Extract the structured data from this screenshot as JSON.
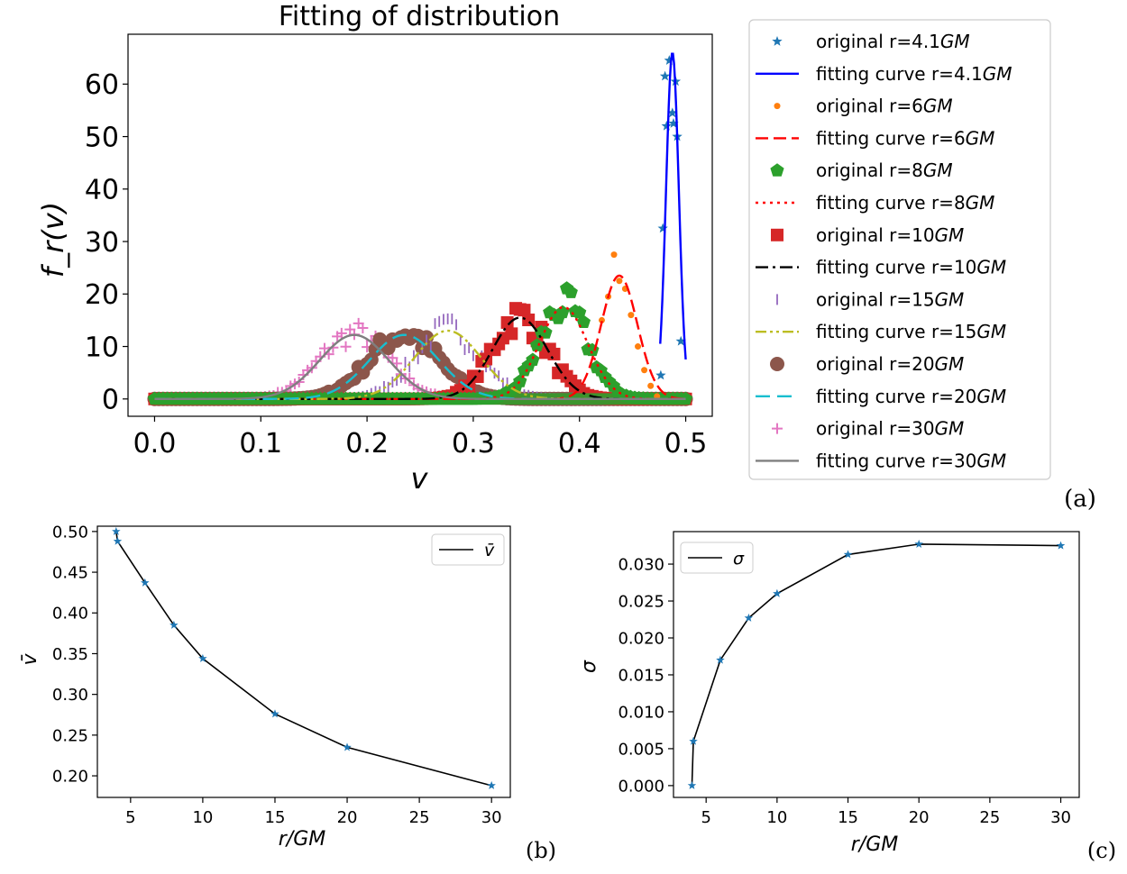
{
  "colors": {
    "C0": "#1f77b4",
    "blue": "#0000ff",
    "C1": "#ff7f0e",
    "red": "#ff0000",
    "C2": "#2ca02c",
    "C3": "#d62728",
    "C4": "#9467bd",
    "olive": "#bcbd22",
    "C5": "#8c564b",
    "cyan": "#17becf",
    "pink": "#e377c2",
    "gray": "#7f7f7f",
    "black": "#000000"
  },
  "chart_data": [
    {
      "type": "line",
      "panel_label": "(a)",
      "title": "Fitting of distribution",
      "xlabel": "v",
      "ylabel": "f_r(v)",
      "xlim": [
        -0.025,
        0.525
      ],
      "ylim": [
        -3.3,
        69.5
      ],
      "xticks": [
        0.0,
        0.1,
        0.2,
        0.3,
        0.4,
        0.5
      ],
      "xtick_labels": [
        "0.0",
        "0.1",
        "0.2",
        "0.3",
        "0.4",
        "0.5"
      ],
      "yticks": [
        0,
        10,
        20,
        30,
        40,
        50,
        60
      ],
      "ytick_labels": [
        "0",
        "10",
        "20",
        "30",
        "40",
        "50",
        "60"
      ],
      "x_range": [
        0.0,
        0.5
      ],
      "legend_position": "outside right",
      "legend": [
        {
          "text": "original r=4.1",
          "unit": "GM"
        },
        {
          "text": "fitting curve r=4.1",
          "unit": "GM"
        },
        {
          "text": "original r=6",
          "unit": "GM"
        },
        {
          "text": "fitting curve r=6",
          "unit": "GM"
        },
        {
          "text": "original r=8",
          "unit": "GM"
        },
        {
          "text": "fitting curve r=8",
          "unit": "GM"
        },
        {
          "text": "original r=10",
          "unit": "GM"
        },
        {
          "text": "fitting curve r=10",
          "unit": "GM"
        },
        {
          "text": "original r=15",
          "unit": "GM"
        },
        {
          "text": "fitting curve r=15",
          "unit": "GM"
        },
        {
          "text": "original r=20",
          "unit": "GM"
        },
        {
          "text": "fitting curve r=20",
          "unit": "GM"
        },
        {
          "text": "original r=30",
          "unit": "GM"
        },
        {
          "text": "fitting curve r=30",
          "unit": "GM"
        }
      ],
      "series": [
        {
          "r": 4.1,
          "mean": 0.4875,
          "sigma": 0.006,
          "peak": 66,
          "x_from": 0.476,
          "original_marker": "star",
          "original_color": "#1f77b4",
          "fit_color": "#0000ff",
          "fit_style": "solid",
          "original_points": [
            [
              0.4765,
              4.5
            ],
            [
              0.4785,
              32.5
            ],
            [
              0.4805,
              61.5
            ],
            [
              0.482,
              52
            ],
            [
              0.4845,
              64.5
            ],
            [
              0.4875,
              54.5
            ],
            [
              0.4885,
              52.5
            ],
            [
              0.4905,
              60.5
            ],
            [
              0.492,
              50
            ],
            [
              0.4955,
              11
            ]
          ]
        },
        {
          "r": 6,
          "mean": 0.4375,
          "sigma": 0.017,
          "peak": 23.5,
          "original_marker": "circle",
          "original_color": "#ff7f0e",
          "fit_color": "#ff0000",
          "fit_style": "dashed",
          "original_points": [
            [
              0.421,
              15
            ],
            [
              0.427,
              19.5
            ],
            [
              0.4325,
              27.5
            ],
            [
              0.4375,
              22.5
            ],
            [
              0.443,
              21
            ],
            [
              0.4485,
              16
            ],
            [
              0.455,
              10
            ],
            [
              0.461,
              5.5
            ],
            [
              0.467,
              2.5
            ],
            [
              0.473,
              0.5
            ]
          ]
        },
        {
          "r": 8,
          "mean": 0.385,
          "sigma": 0.0227,
          "peak": 17.5,
          "original_marker": "pentagon",
          "original_color": "#2ca02c",
          "fit_color": "#ff0000",
          "fit_style": "dotted"
        },
        {
          "r": 10,
          "mean": 0.344,
          "sigma": 0.026,
          "peak": 15.5,
          "original_marker": "square",
          "original_color": "#d62728",
          "fit_color": "#000000",
          "fit_style": "dashdot"
        },
        {
          "r": 15,
          "mean": 0.276,
          "sigma": 0.0313,
          "peak": 13,
          "original_marker": "vline",
          "original_color": "#9467bd",
          "fit_color": "#bcbd22",
          "fit_style": "dashdotdot"
        },
        {
          "r": 20,
          "mean": 0.235,
          "sigma": 0.0327,
          "peak": 12.2,
          "original_marker": "circle-big",
          "original_color": "#8c564b",
          "fit_color": "#17becf",
          "fit_style": "longdash"
        },
        {
          "r": 30,
          "mean": 0.188,
          "sigma": 0.0325,
          "peak": 12.2,
          "original_marker": "plus",
          "original_color": "#e377c2",
          "fit_color": "#7f7f7f",
          "fit_style": "solid"
        }
      ]
    },
    {
      "type": "line",
      "panel_label": "(b)",
      "xlabel": "r/GM",
      "ylabel": "v̄",
      "legend": [
        {
          "text": "v̄"
        }
      ],
      "legend_position": "upper right",
      "xlim": [
        2.7,
        31.3
      ],
      "ylim": [
        0.1735,
        0.5065
      ],
      "xticks": [
        5,
        10,
        15,
        20,
        25,
        30
      ],
      "xtick_labels": [
        "5",
        "10",
        "15",
        "20",
        "25",
        "30"
      ],
      "yticks": [
        0.2,
        0.25,
        0.3,
        0.35,
        0.4,
        0.45,
        0.5
      ],
      "ytick_labels": [
        "0.20",
        "0.25",
        "0.30",
        "0.35",
        "0.40",
        "0.45",
        "0.50"
      ],
      "series": [
        {
          "name": "v̄",
          "x": [
            4,
            4.1,
            6,
            8,
            10,
            15,
            20,
            30
          ],
          "values": [
            0.5,
            0.488,
            0.437,
            0.385,
            0.344,
            0.276,
            0.235,
            0.188
          ]
        }
      ]
    },
    {
      "type": "line",
      "panel_label": "(c)",
      "xlabel": "r/GM",
      "ylabel": "σ",
      "legend": [
        {
          "text": "σ"
        }
      ],
      "legend_position": "upper left",
      "xlim": [
        2.7,
        31.3
      ],
      "ylim": [
        -0.0016,
        0.0344
      ],
      "xticks": [
        5,
        10,
        15,
        20,
        25,
        30
      ],
      "xtick_labels": [
        "5",
        "10",
        "15",
        "20",
        "25",
        "30"
      ],
      "yticks": [
        0.0,
        0.005,
        0.01,
        0.015,
        0.02,
        0.025,
        0.03
      ],
      "ytick_labels": [
        "0.000",
        "0.005",
        "0.010",
        "0.015",
        "0.020",
        "0.025",
        "0.030"
      ],
      "series": [
        {
          "name": "σ",
          "x": [
            4,
            4.1,
            6,
            8,
            10,
            15,
            20,
            30
          ],
          "values": [
            0.0,
            0.006,
            0.017,
            0.0227,
            0.026,
            0.0313,
            0.0327,
            0.0325
          ]
        }
      ]
    }
  ]
}
